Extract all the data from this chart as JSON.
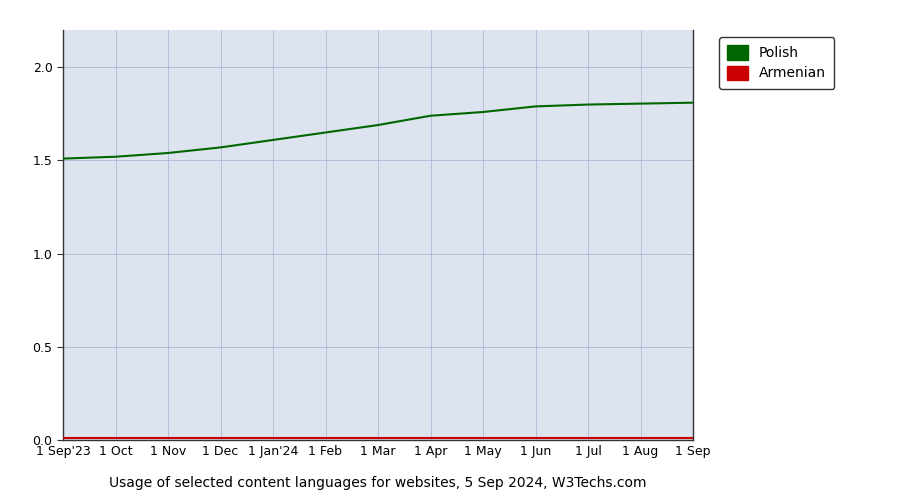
{
  "title": "",
  "xlabel": "Usage of selected content languages for websites, 5 Sep 2024, W3Techs.com",
  "ylabel": "",
  "background_color": "#dde3ef",
  "plot_bg_color": "#dde3ef",
  "fig_bg_color": "#ffffff",
  "polish_color": "#006600",
  "armenian_color": "#cc0000",
  "ylim": [
    0,
    2.2
  ],
  "yticks": [
    0,
    0.5,
    1,
    1.5,
    2
  ],
  "x_labels": [
    "1 Sep'23",
    "1 Oct",
    "1 Nov",
    "1 Dec",
    "1 Jan'24",
    "1 Feb",
    "1 Mar",
    "1 Apr",
    "1 May",
    "1 Jun",
    "1 Jul",
    "1 Aug",
    "1 Sep"
  ],
  "polish_values": [
    1.51,
    1.52,
    1.54,
    1.57,
    1.61,
    1.65,
    1.69,
    1.74,
    1.76,
    1.79,
    1.8,
    1.805,
    1.81
  ],
  "armenian_values": [
    0.01,
    0.01,
    0.01,
    0.01,
    0.01,
    0.01,
    0.01,
    0.01,
    0.01,
    0.01,
    0.01,
    0.01,
    0.01
  ],
  "legend_labels": [
    "Polish",
    "Armenian"
  ],
  "legend_colors": [
    "#006600",
    "#cc0000"
  ],
  "grid_color": "#b0b8d8",
  "tick_fontsize": 9,
  "label_fontsize": 10,
  "legend_fontsize": 10,
  "line_width": 1.5
}
